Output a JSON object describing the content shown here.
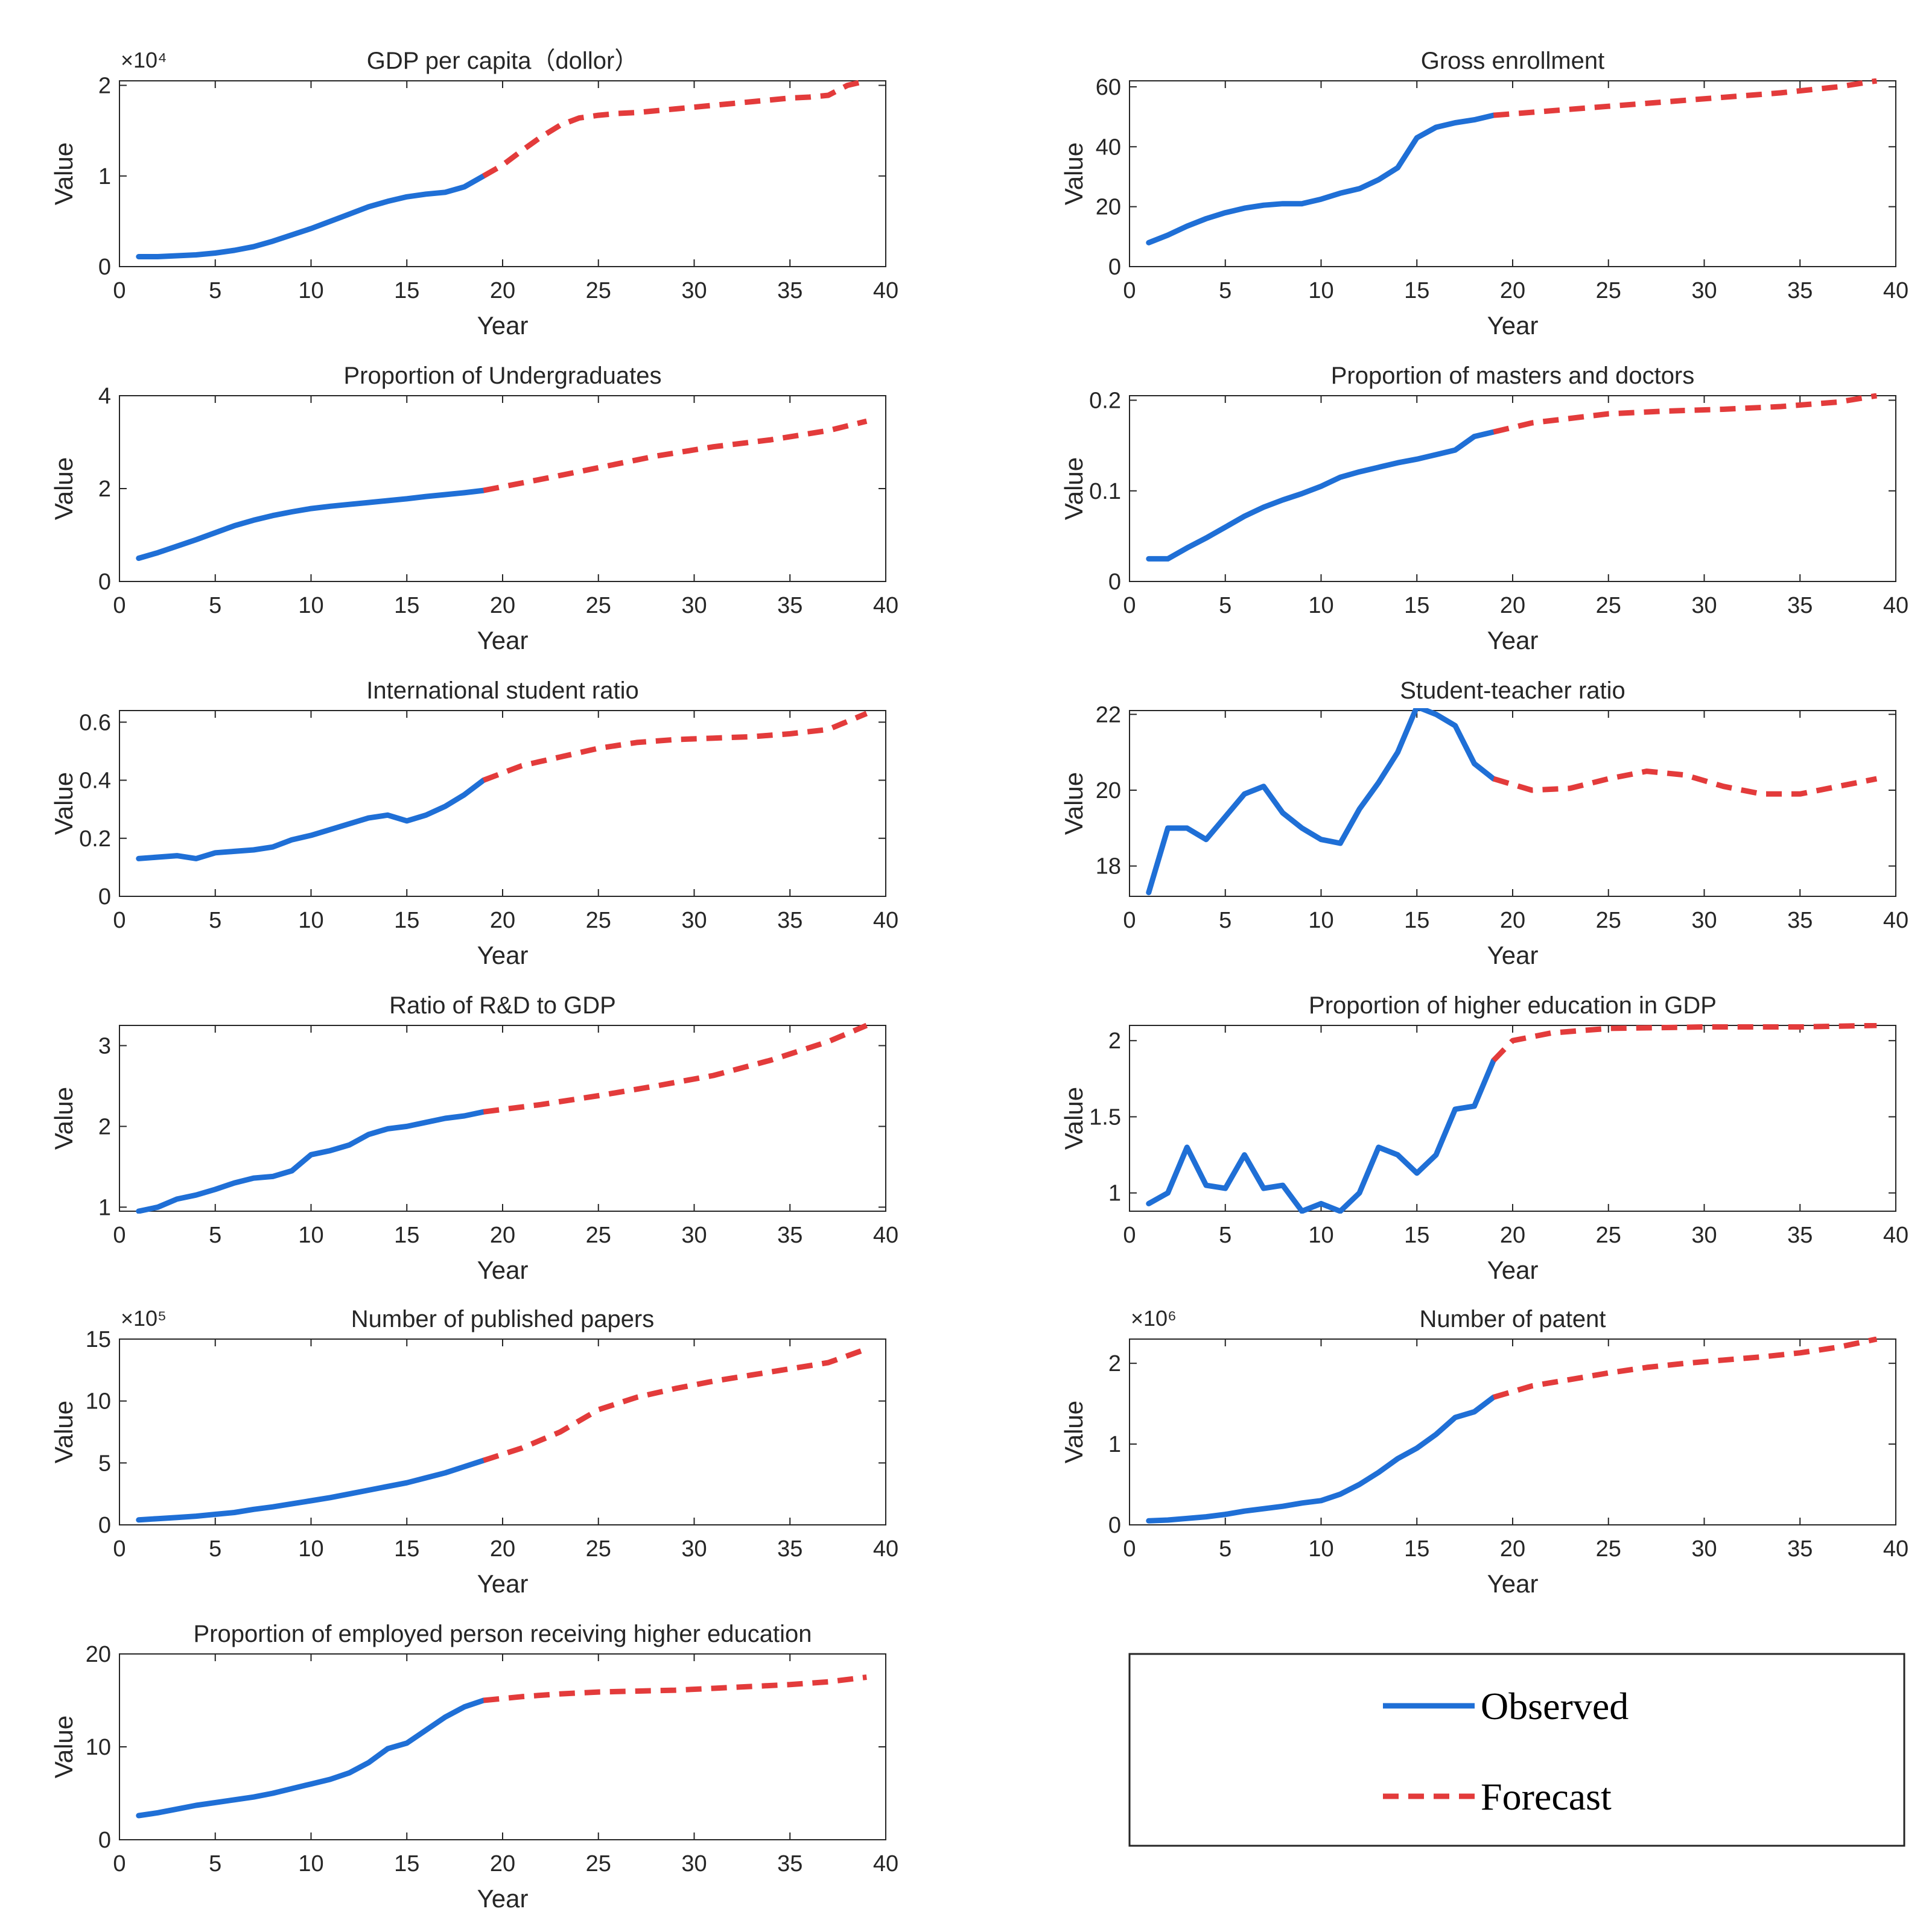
{
  "chart_data": [
    {
      "type": "line",
      "title": "GDP per capita（dollor）",
      "xlabel": "Year",
      "ylabel": "Value",
      "exponent_label": "×10⁴",
      "xlim": [
        0,
        40
      ],
      "ylim": [
        0,
        2.05
      ],
      "xticks": [
        0,
        5,
        10,
        15,
        20,
        25,
        30,
        35,
        40
      ],
      "yticks": [
        0,
        1,
        2
      ],
      "series": [
        {
          "name": "Observed",
          "style": "solid",
          "color": "#1f6fd6",
          "x": [
            1,
            2,
            3,
            4,
            5,
            6,
            7,
            8,
            9,
            10,
            11,
            12,
            13,
            14,
            15,
            16,
            17,
            18,
            19
          ],
          "y": [
            0.11,
            0.11,
            0.12,
            0.13,
            0.15,
            0.18,
            0.22,
            0.28,
            0.35,
            0.42,
            0.5,
            0.58,
            0.66,
            0.72,
            0.77,
            0.8,
            0.82,
            0.88,
            1.0
          ]
        },
        {
          "name": "Forecast",
          "style": "dashed",
          "color": "#e33b3b",
          "x": [
            19,
            20,
            21,
            22,
            23,
            24,
            25,
            26,
            27,
            28,
            29,
            30,
            31,
            32,
            33,
            34,
            35,
            36,
            37,
            38,
            39
          ],
          "y": [
            1.0,
            1.12,
            1.28,
            1.43,
            1.56,
            1.64,
            1.67,
            1.69,
            1.7,
            1.72,
            1.74,
            1.76,
            1.78,
            1.8,
            1.82,
            1.84,
            1.86,
            1.87,
            1.89,
            2.0,
            2.05
          ]
        }
      ]
    },
    {
      "type": "line",
      "title": "Gross enrollment",
      "xlabel": "Year",
      "ylabel": "Value",
      "xlim": [
        0,
        40
      ],
      "ylim": [
        0,
        62
      ],
      "xticks": [
        0,
        5,
        10,
        15,
        20,
        25,
        30,
        35,
        40
      ],
      "yticks": [
        0,
        20,
        40,
        60
      ],
      "series": [
        {
          "name": "Observed",
          "style": "solid",
          "color": "#1f6fd6",
          "x": [
            1,
            2,
            3,
            4,
            5,
            6,
            7,
            8,
            9,
            10,
            11,
            12,
            13,
            14,
            15,
            16,
            17,
            18,
            19
          ],
          "y": [
            8,
            10.5,
            13.5,
            16,
            18,
            19.5,
            20.5,
            21,
            21,
            22.5,
            24.5,
            26,
            29,
            33,
            43,
            46.5,
            48,
            49,
            50.5
          ]
        },
        {
          "name": "Forecast",
          "style": "dashed",
          "color": "#e33b3b",
          "x": [
            19,
            22,
            25,
            28,
            31,
            34,
            37,
            39
          ],
          "y": [
            50.5,
            52,
            53.5,
            55,
            56.5,
            58,
            60,
            62
          ]
        }
      ]
    },
    {
      "type": "line",
      "title": "Proportion of Undergraduates",
      "xlabel": "Year",
      "ylabel": "Value",
      "xlim": [
        0,
        40
      ],
      "ylim": [
        0,
        4
      ],
      "xticks": [
        0,
        5,
        10,
        15,
        20,
        25,
        30,
        35,
        40
      ],
      "yticks": [
        0,
        2,
        4
      ],
      "series": [
        {
          "name": "Observed",
          "style": "solid",
          "color": "#1f6fd6",
          "x": [
            1,
            2,
            3,
            4,
            5,
            6,
            7,
            8,
            9,
            10,
            11,
            12,
            13,
            14,
            15,
            16,
            17,
            18,
            19
          ],
          "y": [
            0.5,
            0.62,
            0.76,
            0.9,
            1.05,
            1.2,
            1.32,
            1.42,
            1.5,
            1.57,
            1.62,
            1.66,
            1.7,
            1.74,
            1.78,
            1.83,
            1.87,
            1.91,
            1.96
          ]
        },
        {
          "name": "Forecast",
          "style": "dashed",
          "color": "#e33b3b",
          "x": [
            19,
            22,
            25,
            28,
            31,
            34,
            37,
            39
          ],
          "y": [
            1.96,
            2.2,
            2.45,
            2.7,
            2.9,
            3.05,
            3.25,
            3.45
          ]
        }
      ]
    },
    {
      "type": "line",
      "title": "Proportion of masters and doctors",
      "xlabel": "Year",
      "ylabel": "Value",
      "xlim": [
        0,
        40
      ],
      "ylim": [
        0,
        0.205
      ],
      "xticks": [
        0,
        5,
        10,
        15,
        20,
        25,
        30,
        35,
        40
      ],
      "yticks": [
        0,
        0.1,
        0.2
      ],
      "series": [
        {
          "name": "Observed",
          "style": "solid",
          "color": "#1f6fd6",
          "x": [
            1,
            2,
            3,
            4,
            5,
            6,
            7,
            8,
            9,
            10,
            11,
            12,
            13,
            14,
            15,
            16,
            17,
            18,
            19
          ],
          "y": [
            0.025,
            0.025,
            0.037,
            0.048,
            0.06,
            0.072,
            0.082,
            0.09,
            0.097,
            0.105,
            0.115,
            0.121,
            0.126,
            0.131,
            0.135,
            0.14,
            0.145,
            0.16,
            0.165
          ]
        },
        {
          "name": "Forecast",
          "style": "dashed",
          "color": "#e33b3b",
          "x": [
            19,
            21,
            23,
            25,
            28,
            31,
            34,
            37,
            39
          ],
          "y": [
            0.165,
            0.175,
            0.18,
            0.185,
            0.188,
            0.19,
            0.193,
            0.198,
            0.205
          ]
        }
      ]
    },
    {
      "type": "line",
      "title": "International student ratio",
      "xlabel": "Year",
      "ylabel": "Value",
      "xlim": [
        0,
        40
      ],
      "ylim": [
        0,
        0.64
      ],
      "xticks": [
        0,
        5,
        10,
        15,
        20,
        25,
        30,
        35,
        40
      ],
      "yticks": [
        0,
        0.2,
        0.4,
        0.6
      ],
      "series": [
        {
          "name": "Observed",
          "style": "solid",
          "color": "#1f6fd6",
          "x": [
            1,
            2,
            3,
            4,
            5,
            6,
            7,
            8,
            9,
            10,
            11,
            12,
            13,
            14,
            15,
            16,
            17,
            18,
            19
          ],
          "y": [
            0.13,
            0.135,
            0.14,
            0.13,
            0.15,
            0.155,
            0.16,
            0.17,
            0.195,
            0.21,
            0.23,
            0.25,
            0.27,
            0.28,
            0.26,
            0.28,
            0.31,
            0.35,
            0.4
          ]
        },
        {
          "name": "Forecast",
          "style": "dashed",
          "color": "#e33b3b",
          "x": [
            19,
            21,
            23,
            25,
            27,
            29,
            31,
            33,
            35,
            37,
            39
          ],
          "y": [
            0.4,
            0.45,
            0.48,
            0.51,
            0.53,
            0.54,
            0.545,
            0.55,
            0.56,
            0.575,
            0.63
          ]
        }
      ]
    },
    {
      "type": "line",
      "title": "Student-teacher ratio",
      "xlabel": "Year",
      "ylabel": "Value",
      "xlim": [
        0,
        40
      ],
      "ylim": [
        17.2,
        22.1
      ],
      "xticks": [
        0,
        5,
        10,
        15,
        20,
        25,
        30,
        35,
        40
      ],
      "yticks": [
        18,
        20,
        22
      ],
      "series": [
        {
          "name": "Observed",
          "style": "solid",
          "color": "#1f6fd6",
          "x": [
            1,
            2,
            3,
            4,
            5,
            6,
            7,
            8,
            9,
            10,
            11,
            12,
            13,
            14,
            15,
            16,
            17,
            18,
            19
          ],
          "y": [
            17.3,
            19.0,
            19.0,
            18.7,
            19.3,
            19.9,
            20.1,
            19.4,
            19.0,
            18.7,
            18.6,
            19.5,
            20.2,
            21.0,
            22.2,
            22.0,
            21.7,
            20.7,
            20.3
          ]
        },
        {
          "name": "Forecast",
          "style": "dashed",
          "color": "#e33b3b",
          "x": [
            19,
            21,
            23,
            25,
            27,
            29,
            31,
            33,
            35,
            37,
            39
          ],
          "y": [
            20.3,
            20.0,
            20.05,
            20.3,
            20.5,
            20.4,
            20.1,
            19.9,
            19.9,
            20.1,
            20.3
          ]
        }
      ]
    },
    {
      "type": "line",
      "title": "Ratio of R&D to GDP",
      "xlabel": "Year",
      "ylabel": "Value",
      "xlim": [
        0,
        40
      ],
      "ylim": [
        0.95,
        3.25
      ],
      "xticks": [
        0,
        5,
        10,
        15,
        20,
        25,
        30,
        35,
        40
      ],
      "yticks": [
        1,
        2,
        3
      ],
      "series": [
        {
          "name": "Observed",
          "style": "solid",
          "color": "#1f6fd6",
          "x": [
            1,
            2,
            3,
            4,
            5,
            6,
            7,
            8,
            9,
            10,
            11,
            12,
            13,
            14,
            15,
            16,
            17,
            18,
            19
          ],
          "y": [
            0.95,
            1.0,
            1.1,
            1.15,
            1.22,
            1.3,
            1.36,
            1.38,
            1.45,
            1.65,
            1.7,
            1.77,
            1.9,
            1.97,
            2.0,
            2.05,
            2.1,
            2.13,
            2.18
          ]
        },
        {
          "name": "Forecast",
          "style": "dashed",
          "color": "#e33b3b",
          "x": [
            19,
            22,
            25,
            28,
            31,
            34,
            37,
            39
          ],
          "y": [
            2.18,
            2.27,
            2.38,
            2.5,
            2.63,
            2.82,
            3.05,
            3.25
          ]
        }
      ]
    },
    {
      "type": "line",
      "title": "Proportion of higher education in GDP",
      "xlabel": "Year",
      "ylabel": "Value",
      "xlim": [
        0,
        40
      ],
      "ylim": [
        0.88,
        2.1
      ],
      "xticks": [
        0,
        5,
        10,
        15,
        20,
        25,
        30,
        35,
        40
      ],
      "yticks": [
        1,
        1.5,
        2
      ],
      "series": [
        {
          "name": "Observed",
          "style": "solid",
          "color": "#1f6fd6",
          "x": [
            1,
            2,
            3,
            4,
            5,
            6,
            7,
            8,
            9,
            10,
            11,
            12,
            13,
            14,
            15,
            16,
            17,
            18,
            19
          ],
          "y": [
            0.93,
            1.0,
            1.3,
            1.05,
            1.03,
            1.25,
            1.03,
            1.05,
            0.88,
            0.93,
            0.88,
            1.0,
            1.3,
            1.25,
            1.13,
            1.25,
            1.55,
            1.57,
            1.87
          ]
        },
        {
          "name": "Forecast",
          "style": "dashed",
          "color": "#e33b3b",
          "x": [
            19,
            20,
            22,
            25,
            30,
            35,
            39
          ],
          "y": [
            1.87,
            2.0,
            2.05,
            2.08,
            2.09,
            2.09,
            2.1
          ]
        }
      ]
    },
    {
      "type": "line",
      "title": "Number of published papers",
      "xlabel": "Year",
      "ylabel": "Value",
      "exponent_label": "×10⁵",
      "xlim": [
        0,
        40
      ],
      "ylim": [
        0,
        15
      ],
      "xticks": [
        0,
        5,
        10,
        15,
        20,
        25,
        30,
        35,
        40
      ],
      "yticks": [
        0,
        5,
        10,
        15
      ],
      "series": [
        {
          "name": "Observed",
          "style": "solid",
          "color": "#1f6fd6",
          "x": [
            1,
            2,
            3,
            4,
            5,
            6,
            7,
            8,
            9,
            10,
            11,
            12,
            13,
            14,
            15,
            16,
            17,
            18,
            19
          ],
          "y": [
            0.4,
            0.5,
            0.6,
            0.7,
            0.85,
            1.0,
            1.25,
            1.45,
            1.7,
            1.95,
            2.2,
            2.5,
            2.8,
            3.1,
            3.4,
            3.8,
            4.2,
            4.7,
            5.2
          ]
        },
        {
          "name": "Forecast",
          "style": "dashed",
          "color": "#e33b3b",
          "x": [
            19,
            21,
            23,
            25,
            27,
            29,
            31,
            33,
            35,
            37,
            39
          ],
          "y": [
            5.2,
            6.2,
            7.5,
            9.3,
            10.3,
            11.0,
            11.6,
            12.1,
            12.6,
            13.1,
            14.2
          ]
        }
      ]
    },
    {
      "type": "line",
      "title": "Number of patent",
      "xlabel": "Year",
      "ylabel": "Value",
      "exponent_label": "×10⁶",
      "xlim": [
        0,
        40
      ],
      "ylim": [
        0,
        2.3
      ],
      "xticks": [
        0,
        5,
        10,
        15,
        20,
        25,
        30,
        35,
        40
      ],
      "yticks": [
        0,
        1,
        2
      ],
      "series": [
        {
          "name": "Observed",
          "style": "solid",
          "color": "#1f6fd6",
          "x": [
            1,
            2,
            3,
            4,
            5,
            6,
            7,
            8,
            9,
            10,
            11,
            12,
            13,
            14,
            15,
            16,
            17,
            18,
            19
          ],
          "y": [
            0.05,
            0.06,
            0.08,
            0.1,
            0.13,
            0.17,
            0.2,
            0.23,
            0.27,
            0.3,
            0.38,
            0.5,
            0.65,
            0.82,
            0.95,
            1.12,
            1.33,
            1.4,
            1.58
          ]
        },
        {
          "name": "Forecast",
          "style": "dashed",
          "color": "#e33b3b",
          "x": [
            19,
            21,
            23,
            25,
            27,
            29,
            31,
            33,
            35,
            37,
            39
          ],
          "y": [
            1.58,
            1.72,
            1.8,
            1.88,
            1.95,
            2.0,
            2.04,
            2.08,
            2.13,
            2.2,
            2.3
          ]
        }
      ]
    },
    {
      "type": "line",
      "title": "Proportion of employed person receiving higher education",
      "xlabel": "Year",
      "ylabel": "Value",
      "xlim": [
        0,
        40
      ],
      "ylim": [
        0,
        20
      ],
      "xticks": [
        0,
        5,
        10,
        15,
        20,
        25,
        30,
        35,
        40
      ],
      "yticks": [
        0,
        10,
        20
      ],
      "series": [
        {
          "name": "Observed",
          "style": "solid",
          "color": "#1f6fd6",
          "x": [
            1,
            2,
            3,
            4,
            5,
            6,
            7,
            8,
            9,
            10,
            11,
            12,
            13,
            14,
            15,
            16,
            17,
            18,
            19
          ],
          "y": [
            2.6,
            2.9,
            3.3,
            3.7,
            4.0,
            4.3,
            4.6,
            5.0,
            5.5,
            6.0,
            6.5,
            7.2,
            8.3,
            9.8,
            10.4,
            11.8,
            13.2,
            14.3,
            15.0
          ]
        },
        {
          "name": "Forecast",
          "style": "dashed",
          "color": "#e33b3b",
          "x": [
            19,
            21,
            23,
            25,
            27,
            29,
            31,
            33,
            35,
            37,
            39
          ],
          "y": [
            15.0,
            15.4,
            15.7,
            15.9,
            16.0,
            16.1,
            16.3,
            16.5,
            16.7,
            17.0,
            17.5
          ]
        }
      ]
    }
  ],
  "legend": {
    "entries": [
      {
        "label": "Observed",
        "style": "solid",
        "color": "#1f6fd6"
      },
      {
        "label": "Forecast",
        "style": "dashed",
        "color": "#e33b3b"
      }
    ]
  }
}
